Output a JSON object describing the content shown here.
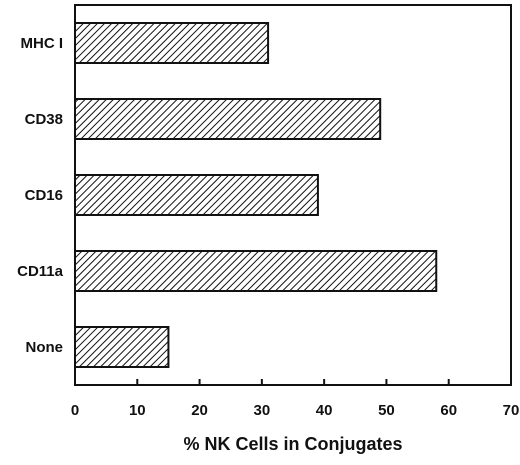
{
  "chart_data": {
    "type": "bar",
    "orientation": "horizontal",
    "categories": [
      "MHC I",
      "CD38",
      "CD16",
      "CD11a",
      "None"
    ],
    "values": [
      31,
      49,
      39,
      58,
      15
    ],
    "xlabel": "% NK Cells in Conjugates",
    "ylabel": "",
    "xlim": [
      0,
      70
    ],
    "xticks": [
      0,
      10,
      20,
      30,
      40,
      50,
      60,
      70
    ],
    "grid": false,
    "bar_fill": "diagonal-hatch",
    "colors": {
      "bar_stroke": "#111111",
      "hatch": "#111111",
      "background": "#ffffff"
    }
  }
}
